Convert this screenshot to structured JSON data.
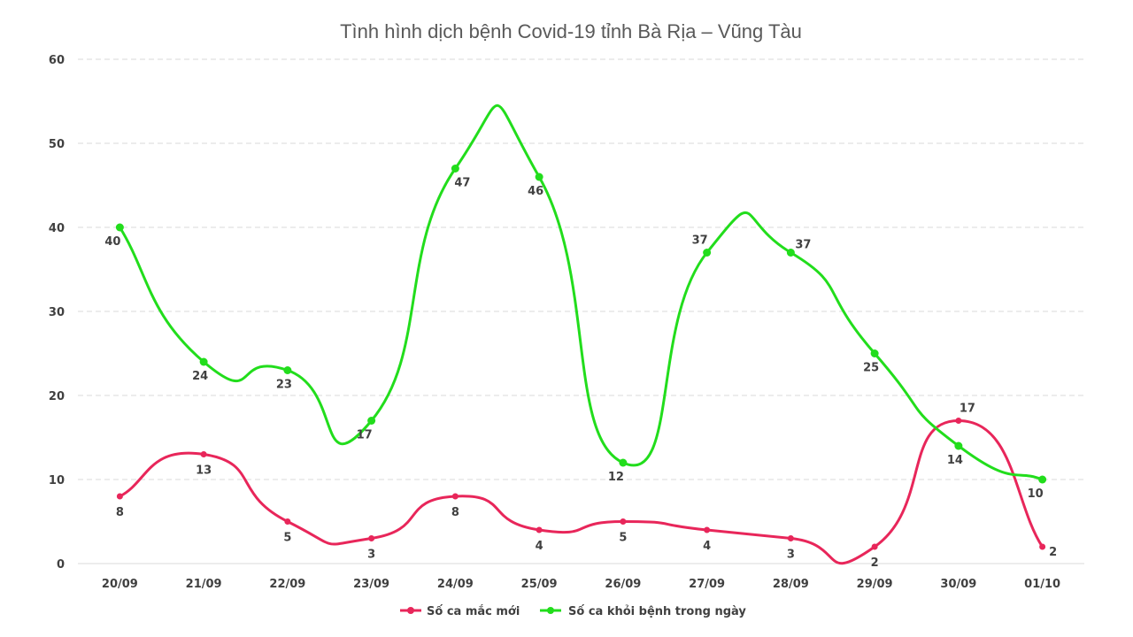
{
  "chart_data": {
    "type": "line",
    "title": "Tình hình dịch bệnh Covid-19 tỉnh Bà Rịa – Vũng Tàu",
    "xlabel": "",
    "ylabel": "",
    "categories": [
      "20/09",
      "21/09",
      "22/09",
      "23/09",
      "24/09",
      "25/09",
      "26/09",
      "27/09",
      "28/09",
      "29/09",
      "30/09",
      "01/10"
    ],
    "ylim": [
      0,
      60
    ],
    "yticks": [
      0,
      10,
      20,
      30,
      40,
      50,
      60
    ],
    "grid": true,
    "legend_position": "bottom",
    "series": [
      {
        "name": "Số ca mắc mới",
        "color": "#e8265a",
        "values": [
          8,
          13,
          5,
          3,
          8,
          4,
          5,
          4,
          3,
          2,
          17,
          2
        ]
      },
      {
        "name": "Số ca khỏi bệnh trong ngày",
        "color": "#22dd1c",
        "values": [
          40,
          24,
          23,
          17,
          47,
          46,
          12,
          37,
          37,
          25,
          14,
          10
        ]
      }
    ]
  }
}
